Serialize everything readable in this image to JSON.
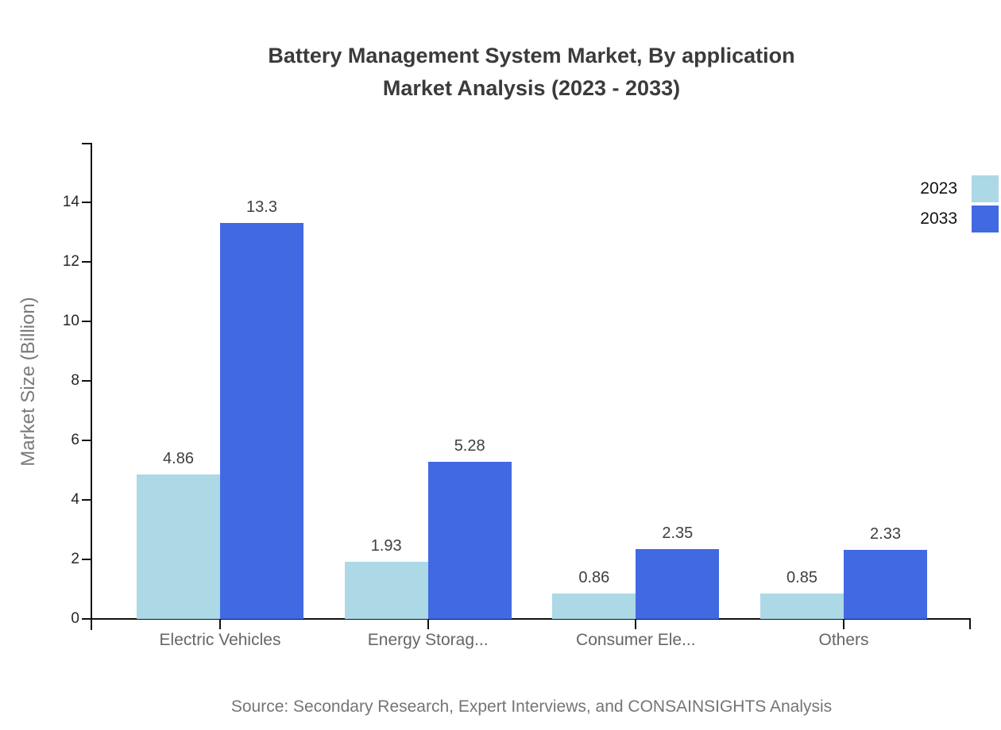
{
  "title": {
    "line1": "Battery Management System Market, By application",
    "line2": "Market Analysis (2023 - 2033)"
  },
  "source_note": "Source: Secondary Research, Expert Interviews, and CONSAINSIGHTS Analysis",
  "chart_data": {
    "type": "bar",
    "title": "Battery Management System Market, By application Market Analysis (2023 - 2033)",
    "categories": [
      "Electric Vehicles",
      "Energy Storag...",
      "Consumer Ele...",
      "Others"
    ],
    "series": [
      {
        "name": "2023",
        "color": "#ADD8E6",
        "values": [
          4.86,
          1.93,
          0.86,
          0.85
        ],
        "labels": [
          "4.86",
          "1.93",
          "0.86",
          "0.85"
        ]
      },
      {
        "name": "2033",
        "color": "#4169E1",
        "values": [
          13.3,
          5.28,
          2.35,
          2.33
        ],
        "labels": [
          "13.3",
          "5.28",
          "2.35",
          "2.33"
        ]
      }
    ],
    "xlabel": "",
    "ylabel": "Market Size (Billion)",
    "ylim": [
      0,
      16
    ],
    "yticks": [
      0,
      2,
      4,
      6,
      8,
      10,
      12,
      14
    ],
    "grid": false,
    "legend_position": "top-right",
    "axis_color": "#111111"
  }
}
